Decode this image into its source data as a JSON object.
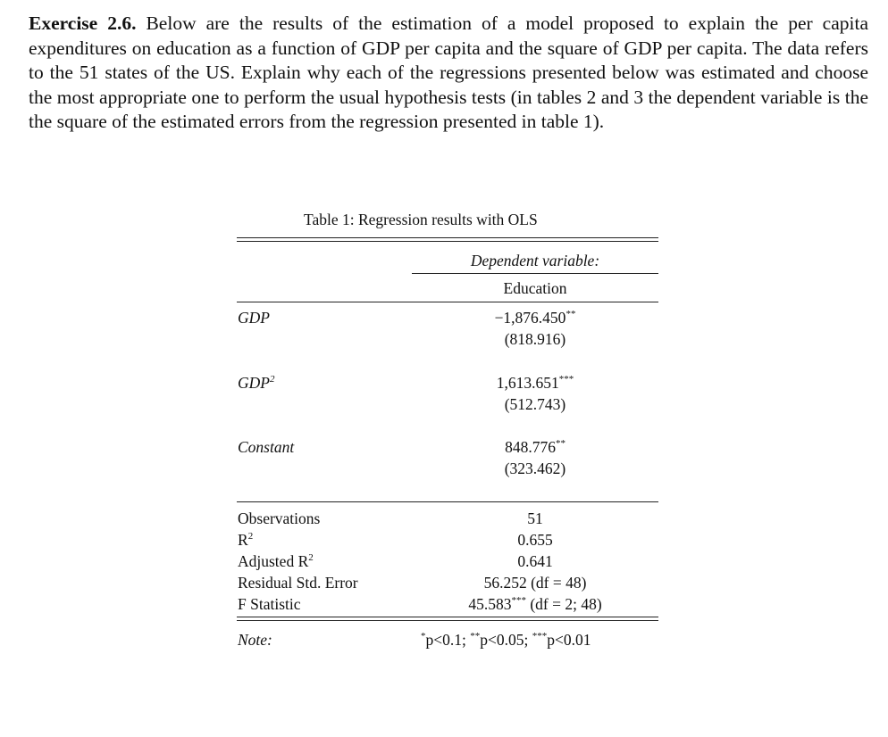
{
  "exercise": {
    "label": "Exercise 2.6.",
    "text": "Below are the results of the estimation of a model proposed to explain the per capita expenditures on education as a function of GDP per capita and the square of GDP per capita. The data refers to the 51 states of the US. Explain why each of the regressions presented below was estimated and choose the most appropriate one to perform the usual hypothesis tests (in tables 2 and 3 the dependent variable is the the square of the estimated errors from the regression presented in table 1)."
  },
  "table": {
    "caption": "Table 1: Regression results with OLS",
    "dep_var_header": "Dependent variable:",
    "dep_var": "Education",
    "coefficients": [
      {
        "name": "GDP",
        "sup": "",
        "value": "−1,876.450",
        "stars": "**",
        "se": "(818.916)"
      },
      {
        "name": "GDP",
        "sup": "2",
        "value": "1,613.651",
        "stars": "***",
        "se": "(512.743)"
      },
      {
        "name": "Constant",
        "sup": "",
        "value": "848.776",
        "stars": "**",
        "se": "(323.462)"
      }
    ],
    "stats": [
      {
        "name": "Observations",
        "sup": "",
        "value": "51",
        "stars": "",
        "extra": ""
      },
      {
        "name": "R",
        "sup": "2",
        "value": "0.655",
        "stars": "",
        "extra": ""
      },
      {
        "name": "Adjusted R",
        "sup": "2",
        "value": "0.641",
        "stars": "",
        "extra": ""
      },
      {
        "name": "Residual Std. Error",
        "sup": "",
        "value": "56.252 (df = 48)",
        "stars": "",
        "extra": ""
      },
      {
        "name": "F Statistic",
        "sup": "",
        "value": "45.583",
        "stars": "***",
        "extra": " (df = 2; 48)"
      }
    ],
    "note_label": "Note:",
    "note": [
      {
        "stars": "*",
        "text": "p<0.1; "
      },
      {
        "stars": "**",
        "text": "p<0.05; "
      },
      {
        "stars": "***",
        "text": "p<0.01"
      }
    ]
  }
}
